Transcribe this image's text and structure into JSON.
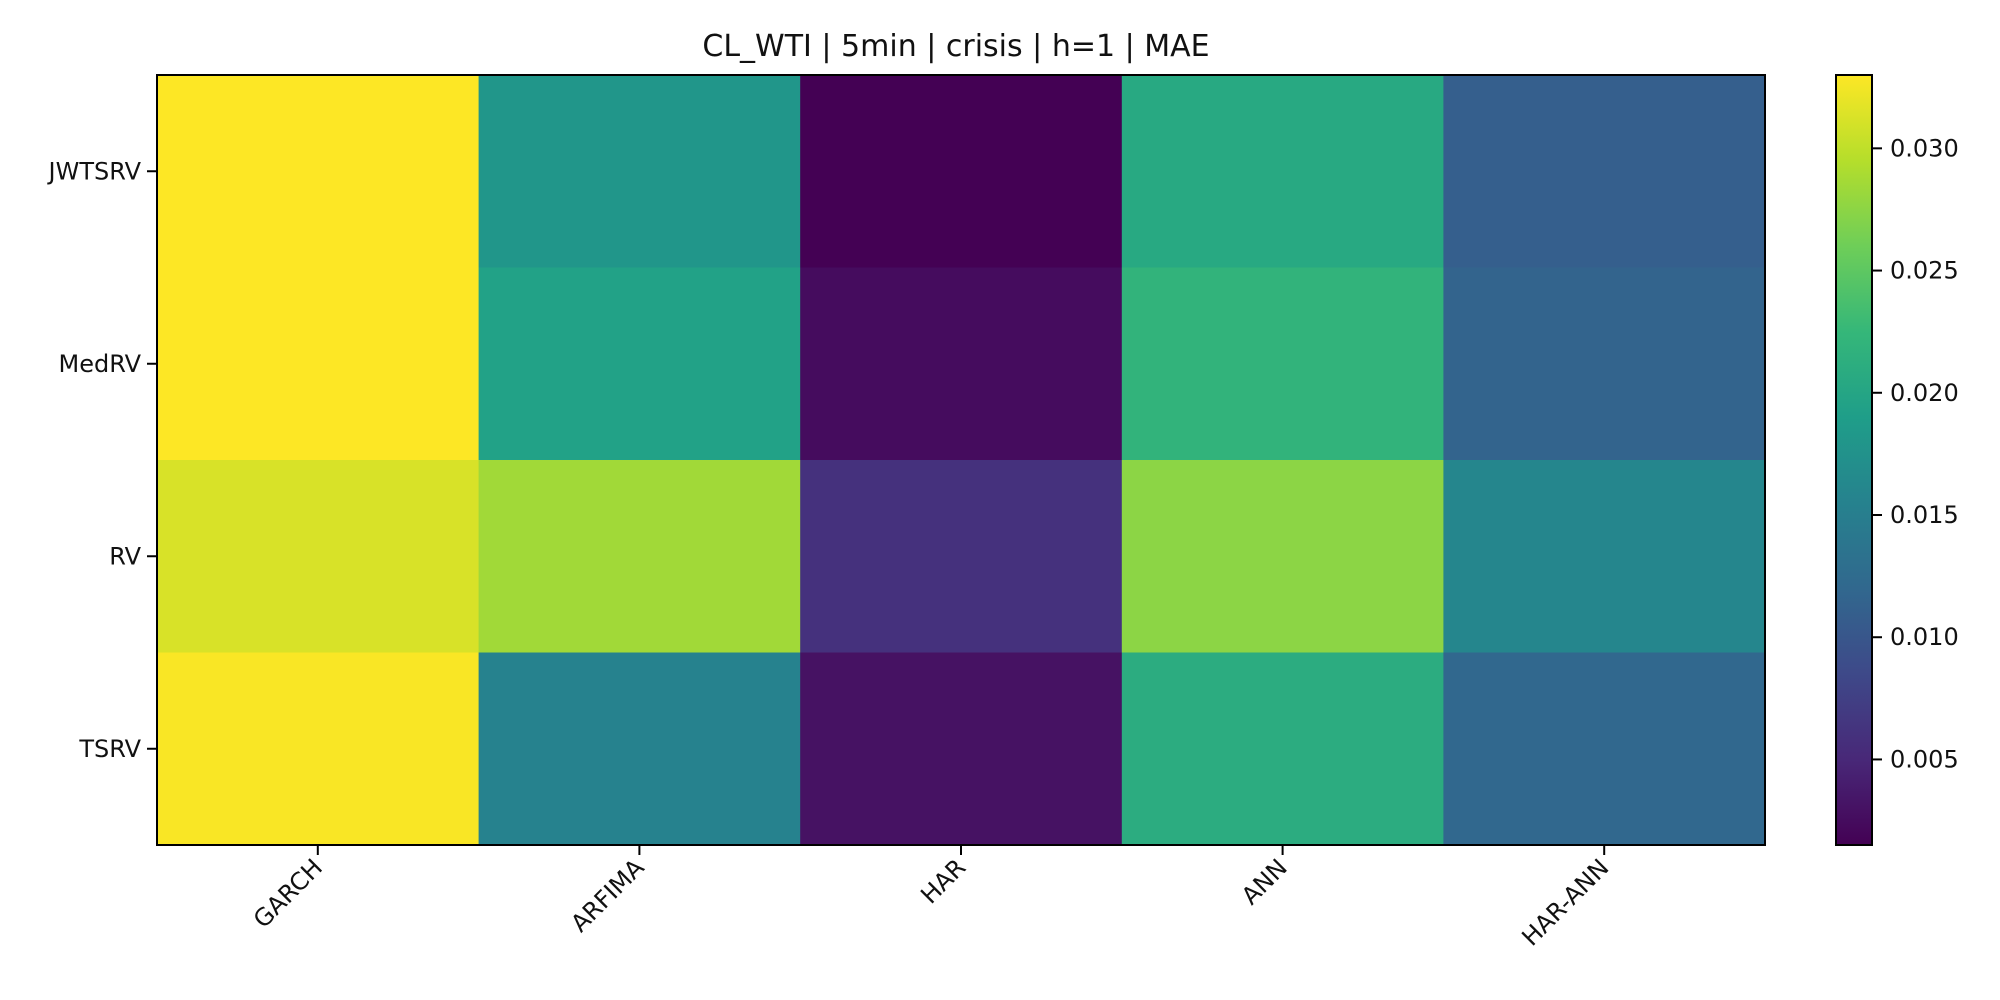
{
  "chart_data": {
    "type": "heatmap",
    "title": "CL_WTI | 5min | crisis | h=1 | MAE",
    "x_categories": [
      "GARCH",
      "ARFIMA",
      "HAR",
      "ANN",
      "HAR-ANN"
    ],
    "y_categories": [
      "JWTSRV",
      "MedRV",
      "RV",
      "TSRV"
    ],
    "values": [
      [
        0.033,
        0.018,
        0.0015,
        0.0205,
        0.011
      ],
      [
        0.033,
        0.0195,
        0.0025,
        0.022,
        0.0115
      ],
      [
        0.0312,
        0.0285,
        0.006,
        0.0275,
        0.016
      ],
      [
        0.0328,
        0.0155,
        0.003,
        0.021,
        0.012
      ]
    ],
    "colorbar": {
      "min": 0.0015,
      "max": 0.033,
      "ticks": [
        0.005,
        0.01,
        0.015,
        0.02,
        0.025,
        0.03
      ],
      "tick_labels": [
        "0.005",
        "0.010",
        "0.015",
        "0.020",
        "0.025",
        "0.030"
      ],
      "colormap": "viridis"
    },
    "xlabel": "",
    "ylabel": "",
    "grid": false,
    "colors": {
      "viridis": [
        "#440154",
        "#482878",
        "#3e4989",
        "#31688e",
        "#26828e",
        "#1f9e89",
        "#35b779",
        "#6ece58",
        "#b5de2b",
        "#fde725"
      ]
    }
  }
}
